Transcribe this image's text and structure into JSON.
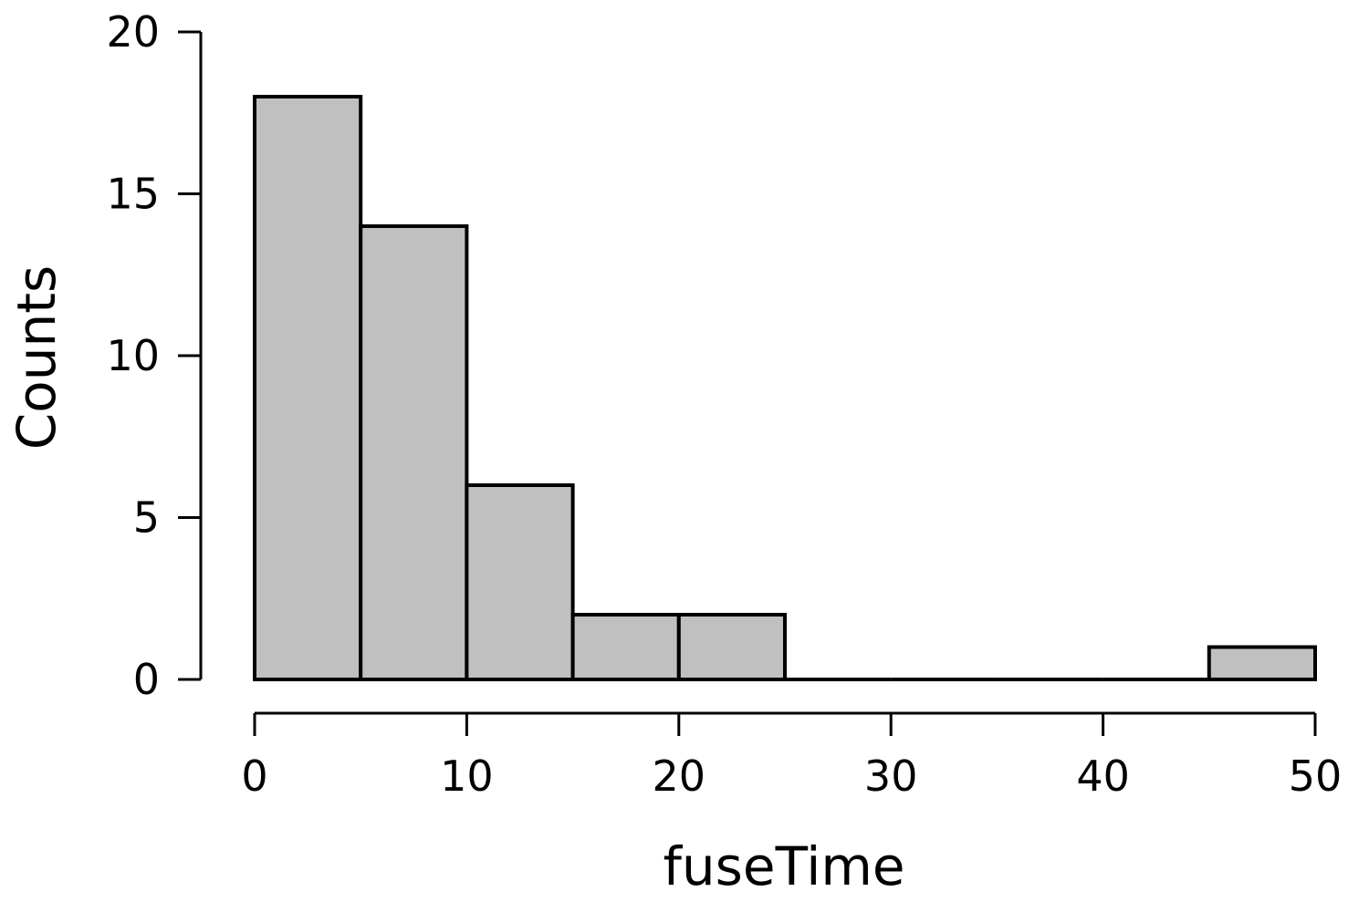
{
  "chart_data": {
    "type": "bar",
    "subtype": "histogram",
    "bins": [
      {
        "start": 0,
        "end": 5,
        "count": 18
      },
      {
        "start": 5,
        "end": 10,
        "count": 14
      },
      {
        "start": 10,
        "end": 15,
        "count": 6
      },
      {
        "start": 15,
        "end": 20,
        "count": 2
      },
      {
        "start": 20,
        "end": 25,
        "count": 2
      },
      {
        "start": 25,
        "end": 30,
        "count": 0
      },
      {
        "start": 30,
        "end": 35,
        "count": 0
      },
      {
        "start": 35,
        "end": 40,
        "count": 0
      },
      {
        "start": 40,
        "end": 45,
        "count": 0
      },
      {
        "start": 45,
        "end": 50,
        "count": 1
      }
    ],
    "xlabel": "fuseTime",
    "ylabel": "Counts",
    "xlim": [
      0,
      50
    ],
    "ylim": [
      0,
      20
    ],
    "xticks": [
      0,
      10,
      20,
      30,
      40,
      50
    ],
    "yticks": [
      0,
      5,
      10,
      15,
      20
    ],
    "grid": false,
    "bar_fill": "#c0c0c0",
    "bar_edge": "#000000"
  }
}
